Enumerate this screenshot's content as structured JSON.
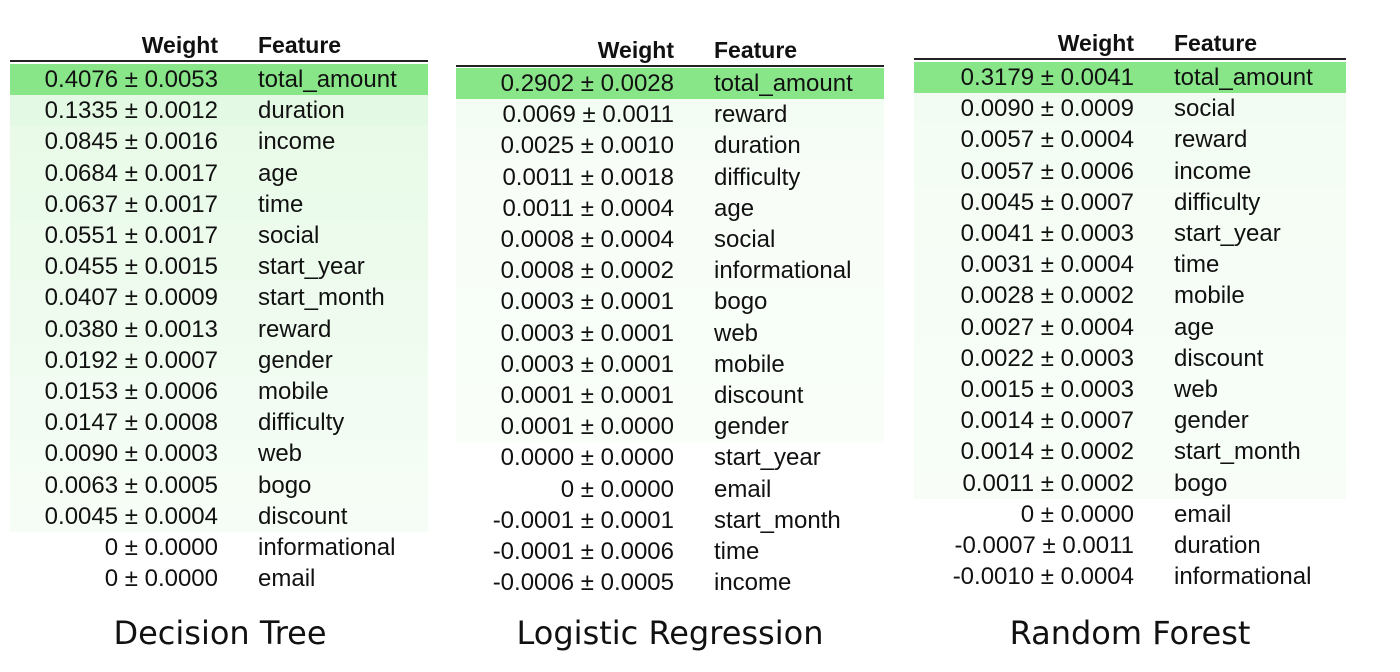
{
  "chart_data": [
    {
      "type": "table",
      "headers": {
        "weight": "Weight",
        "feature": "Feature"
      },
      "caption": "Decision Tree",
      "accent_color": "#88e588",
      "rows": [
        {
          "weight": "0.4076 ± 0.0053",
          "feature": "total_amount",
          "value": 0.4076
        },
        {
          "weight": "0.1335 ± 0.0012",
          "feature": "duration",
          "value": 0.1335
        },
        {
          "weight": "0.0845 ± 0.0016",
          "feature": "income",
          "value": 0.0845
        },
        {
          "weight": "0.0684 ± 0.0017",
          "feature": "age",
          "value": 0.0684
        },
        {
          "weight": "0.0637 ± 0.0017",
          "feature": "time",
          "value": 0.0637
        },
        {
          "weight": "0.0551 ± 0.0017",
          "feature": "social",
          "value": 0.0551
        },
        {
          "weight": "0.0455 ± 0.0015",
          "feature": "start_year",
          "value": 0.0455
        },
        {
          "weight": "0.0407 ± 0.0009",
          "feature": "start_month",
          "value": 0.0407
        },
        {
          "weight": "0.0380 ± 0.0013",
          "feature": "reward",
          "value": 0.038
        },
        {
          "weight": "0.0192 ± 0.0007",
          "feature": "gender",
          "value": 0.0192
        },
        {
          "weight": "0.0153 ± 0.0006",
          "feature": "mobile",
          "value": 0.0153
        },
        {
          "weight": "0.0147 ± 0.0008",
          "feature": "difficulty",
          "value": 0.0147
        },
        {
          "weight": "0.0090 ± 0.0003",
          "feature": "web",
          "value": 0.009
        },
        {
          "weight": "0.0063 ± 0.0005",
          "feature": "bogo",
          "value": 0.0063
        },
        {
          "weight": "0.0045 ± 0.0004",
          "feature": "discount",
          "value": 0.0045
        },
        {
          "weight": "0 ± 0.0000",
          "feature": "informational",
          "value": 0
        },
        {
          "weight": "0 ± 0.0000",
          "feature": "email",
          "value": 0
        }
      ]
    },
    {
      "type": "table",
      "headers": {
        "weight": "Weight",
        "feature": "Feature"
      },
      "caption": "Logistic Regression",
      "accent_color": "#88e588",
      "rows": [
        {
          "weight": "0.2902 ± 0.0028",
          "feature": "total_amount",
          "value": 0.2902
        },
        {
          "weight": "0.0069 ± 0.0011",
          "feature": "reward",
          "value": 0.0069
        },
        {
          "weight": "0.0025 ± 0.0010",
          "feature": "duration",
          "value": 0.0025
        },
        {
          "weight": "0.0011 ± 0.0018",
          "feature": "difficulty",
          "value": 0.0011
        },
        {
          "weight": "0.0011 ± 0.0004",
          "feature": "age",
          "value": 0.0011
        },
        {
          "weight": "0.0008 ± 0.0004",
          "feature": "social",
          "value": 0.0008
        },
        {
          "weight": "0.0008 ± 0.0002",
          "feature": "informational",
          "value": 0.0008
        },
        {
          "weight": "0.0003 ± 0.0001",
          "feature": "bogo",
          "value": 0.0003
        },
        {
          "weight": "0.0003 ± 0.0001",
          "feature": "web",
          "value": 0.0003
        },
        {
          "weight": "0.0003 ± 0.0001",
          "feature": "mobile",
          "value": 0.0003
        },
        {
          "weight": "0.0001 ± 0.0001",
          "feature": "discount",
          "value": 0.0001
        },
        {
          "weight": "0.0001 ± 0.0000",
          "feature": "gender",
          "value": 0.0001
        },
        {
          "weight": "0.0000 ± 0.0000",
          "feature": "start_year",
          "value": 0
        },
        {
          "weight": "0 ± 0.0000",
          "feature": "email",
          "value": 0
        },
        {
          "weight": "-0.0001 ± 0.0001",
          "feature": "start_month",
          "value": -0.0001
        },
        {
          "weight": "-0.0001 ± 0.0006",
          "feature": "time",
          "value": -0.0001
        },
        {
          "weight": "-0.0006 ± 0.0005",
          "feature": "income",
          "value": -0.0006
        }
      ]
    },
    {
      "type": "table",
      "headers": {
        "weight": "Weight",
        "feature": "Feature"
      },
      "caption": "Random Forest",
      "accent_color": "#88e588",
      "rows": [
        {
          "weight": "0.3179 ± 0.0041",
          "feature": "total_amount",
          "value": 0.3179
        },
        {
          "weight": "0.0090 ± 0.0009",
          "feature": "social",
          "value": 0.009
        },
        {
          "weight": "0.0057 ± 0.0004",
          "feature": "reward",
          "value": 0.0057
        },
        {
          "weight": "0.0057 ± 0.0006",
          "feature": "income",
          "value": 0.0057
        },
        {
          "weight": "0.0045 ± 0.0007",
          "feature": "difficulty",
          "value": 0.0045
        },
        {
          "weight": "0.0041 ± 0.0003",
          "feature": "start_year",
          "value": 0.0041
        },
        {
          "weight": "0.0031 ± 0.0004",
          "feature": "time",
          "value": 0.0031
        },
        {
          "weight": "0.0028 ± 0.0002",
          "feature": "mobile",
          "value": 0.0028
        },
        {
          "weight": "0.0027 ± 0.0004",
          "feature": "age",
          "value": 0.0027
        },
        {
          "weight": "0.0022 ± 0.0003",
          "feature": "discount",
          "value": 0.0022
        },
        {
          "weight": "0.0015 ± 0.0003",
          "feature": "web",
          "value": 0.0015
        },
        {
          "weight": "0.0014 ± 0.0007",
          "feature": "gender",
          "value": 0.0014
        },
        {
          "weight": "0.0014 ± 0.0002",
          "feature": "start_month",
          "value": 0.0014
        },
        {
          "weight": "0.0011 ± 0.0002",
          "feature": "bogo",
          "value": 0.0011
        },
        {
          "weight": "0 ± 0.0000",
          "feature": "email",
          "value": 0
        },
        {
          "weight": "-0.0007 ± 0.0011",
          "feature": "duration",
          "value": -0.0007
        },
        {
          "weight": "-0.0010 ± 0.0004",
          "feature": "informational",
          "value": -0.001
        }
      ]
    }
  ]
}
